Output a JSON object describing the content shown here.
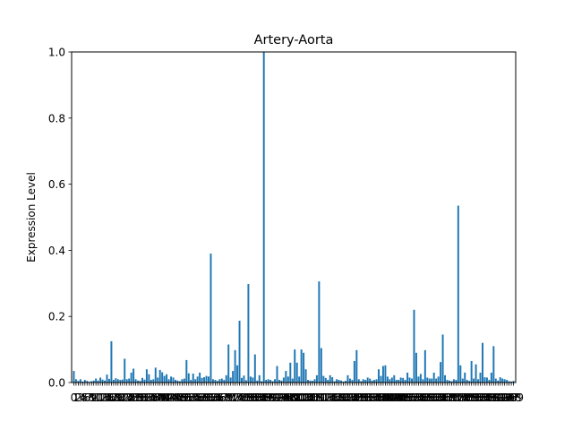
{
  "chart_data": {
    "type": "bar",
    "title": "Artery-Aorta",
    "xlabel": "",
    "ylabel": "Expression Level",
    "ylim": [
      0,
      1.0
    ],
    "yticks": [
      "0.0",
      "0.2",
      "0.4",
      "0.6",
      "0.8",
      "1.0"
    ],
    "xlim": [
      -1,
      200
    ],
    "x_tick_labels": "illegible overlapping category indices (0–199)",
    "bar_color": "#1f77b4",
    "grid": false,
    "values": [
      0.035,
      0.01,
      0.005,
      0.01,
      0.003,
      0.008,
      0.005,
      0.002,
      0.004,
      0.006,
      0.012,
      0.006,
      0.015,
      0.009,
      0.006,
      0.024,
      0.011,
      0.125,
      0.008,
      0.013,
      0.01,
      0.008,
      0.009,
      0.072,
      0.01,
      0.012,
      0.03,
      0.042,
      0.01,
      0.006,
      0.005,
      0.014,
      0.009,
      0.04,
      0.025,
      0.008,
      0.01,
      0.045,
      0.015,
      0.038,
      0.031,
      0.02,
      0.025,
      0.01,
      0.018,
      0.015,
      0.008,
      0.006,
      0.004,
      0.01,
      0.012,
      0.068,
      0.028,
      0.008,
      0.027,
      0.01,
      0.018,
      0.03,
      0.014,
      0.016,
      0.02,
      0.018,
      0.39,
      0.01,
      0.008,
      0.005,
      0.01,
      0.012,
      0.008,
      0.022,
      0.115,
      0.015,
      0.035,
      0.098,
      0.052,
      0.187,
      0.014,
      0.021,
      0.007,
      0.298,
      0.018,
      0.015,
      0.085,
      0.006,
      0.022,
      0.004,
      1.0,
      0.008,
      0.01,
      0.008,
      0.004,
      0.01,
      0.05,
      0.008,
      0.006,
      0.015,
      0.035,
      0.018,
      0.06,
      0.012,
      0.1,
      0.06,
      0.018,
      0.1,
      0.09,
      0.04,
      0.008,
      0.006,
      0.005,
      0.01,
      0.022,
      0.306,
      0.104,
      0.02,
      0.014,
      0.008,
      0.022,
      0.016,
      0.004,
      0.01,
      0.008,
      0.006,
      0.003,
      0.005,
      0.022,
      0.012,
      0.008,
      0.065,
      0.098,
      0.01,
      0.004,
      0.01,
      0.008,
      0.015,
      0.012,
      0.006,
      0.008,
      0.01,
      0.04,
      0.02,
      0.05,
      0.052,
      0.018,
      0.01,
      0.015,
      0.022,
      0.008,
      0.008,
      0.015,
      0.014,
      0.008,
      0.03,
      0.015,
      0.012,
      0.22,
      0.09,
      0.018,
      0.026,
      0.01,
      0.098,
      0.015,
      0.012,
      0.012,
      0.03,
      0.012,
      0.018,
      0.062,
      0.145,
      0.022,
      0.008,
      0.006,
      0.004,
      0.01,
      0.008,
      0.535,
      0.052,
      0.012,
      0.03,
      0.008,
      0.005,
      0.065,
      0.012,
      0.055,
      0.01,
      0.03,
      0.12,
      0.016,
      0.015,
      0.008,
      0.03,
      0.11,
      0.012,
      0.006,
      0.016,
      0.012,
      0.01,
      0.008,
      0.004,
      0.003,
      0.005
    ]
  }
}
